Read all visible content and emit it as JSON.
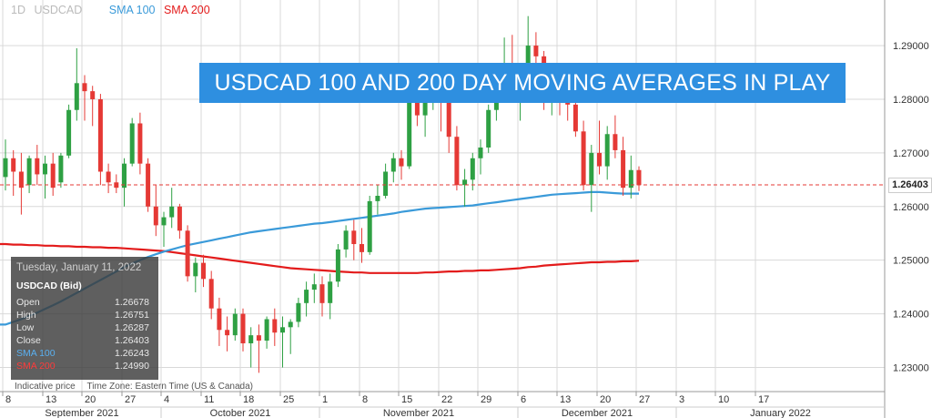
{
  "header": {
    "timeframe": "1D",
    "symbol": "USDCAD",
    "sma100_label": "SMA 100",
    "sma200_label": "SMA 200"
  },
  "banner": {
    "text": "USDCAD 100 AND 200 DAY MOVING AVERAGES IN PLAY"
  },
  "colors": {
    "up": "#2ea043",
    "down": "#e53935",
    "sma100": "#3a9ad9",
    "sma200": "#e31b1b",
    "banner": "#2e8fe0",
    "grid": "#d9d9d9"
  },
  "info_box": {
    "date": "Tuesday, January 11, 2022",
    "pair": "USDCAD (Bid)",
    "rows": [
      {
        "k": "Open",
        "v": "1.26678"
      },
      {
        "k": "High",
        "v": "1.26751"
      },
      {
        "k": "Low",
        "v": "1.26287"
      },
      {
        "k": "Close",
        "v": "1.26403"
      },
      {
        "k": "SMA 100",
        "v": "1.26243"
      },
      {
        "k": "SMA 200",
        "v": "1.24990"
      }
    ]
  },
  "footer": {
    "indicative": "Indicative price",
    "timezone": "Time Zone: Eastern Time (US & Canada)"
  },
  "chart_data": {
    "type": "candlestick",
    "y_ticks": [
      "1.29000",
      "1.28000",
      "1.27000",
      "1.26000",
      "1.25000",
      "1.24000",
      "1.23000"
    ],
    "ylim": [
      1.2255,
      1.2985
    ],
    "last_price_label": "1.26403",
    "last_price": 1.26403,
    "day_ticks": [
      "8",
      "13",
      "20",
      "27",
      "4",
      "11",
      "18",
      "25",
      "1",
      "8",
      "15",
      "22",
      "29",
      "6",
      "13",
      "20",
      "27",
      "3",
      "10",
      "17"
    ],
    "months": [
      "September 2021",
      "October 2021",
      "November 2021",
      "December 2021",
      "January 2022"
    ],
    "candles": [
      [
        1.2655,
        1.2725,
        1.263,
        1.269
      ],
      [
        1.269,
        1.2705,
        1.262,
        1.2665
      ],
      [
        1.2665,
        1.27,
        1.2585,
        1.2635
      ],
      [
        1.264,
        1.2695,
        1.2625,
        1.269
      ],
      [
        1.269,
        1.2715,
        1.264,
        1.266
      ],
      [
        1.266,
        1.2695,
        1.2615,
        1.268
      ],
      [
        1.268,
        1.27,
        1.262,
        1.2635
      ],
      [
        1.2645,
        1.27,
        1.2635,
        1.2695
      ],
      [
        1.2695,
        1.279,
        1.269,
        1.278
      ],
      [
        1.278,
        1.2895,
        1.276,
        1.283
      ],
      [
        1.283,
        1.2845,
        1.276,
        1.2815
      ],
      [
        1.2815,
        1.2825,
        1.275,
        1.28
      ],
      [
        1.28,
        1.281,
        1.264,
        1.2665
      ],
      [
        1.2665,
        1.268,
        1.2625,
        1.2645
      ],
      [
        1.2645,
        1.266,
        1.2625,
        1.2635
      ],
      [
        1.2635,
        1.269,
        1.26,
        1.268
      ],
      [
        1.268,
        1.2765,
        1.2675,
        1.2755
      ],
      [
        1.2755,
        1.2775,
        1.266,
        1.268
      ],
      [
        1.268,
        1.269,
        1.259,
        1.26
      ],
      [
        1.26,
        1.264,
        1.2545,
        1.2565
      ],
      [
        1.2565,
        1.259,
        1.2525,
        1.258
      ],
      [
        1.258,
        1.2635,
        1.256,
        1.26
      ],
      [
        1.26,
        1.2605,
        1.254,
        1.2555
      ],
      [
        1.2555,
        1.2565,
        1.246,
        1.247
      ],
      [
        1.247,
        1.2505,
        1.244,
        1.2495
      ],
      [
        1.2495,
        1.251,
        1.245,
        1.2465
      ],
      [
        1.2465,
        1.248,
        1.239,
        1.241
      ],
      [
        1.241,
        1.243,
        1.234,
        1.237
      ],
      [
        1.237,
        1.2395,
        1.233,
        1.236
      ],
      [
        1.236,
        1.241,
        1.235,
        1.24
      ],
      [
        1.24,
        1.241,
        1.233,
        1.2345
      ],
      [
        1.2345,
        1.2375,
        1.23,
        1.236
      ],
      [
        1.236,
        1.238,
        1.229,
        1.235
      ],
      [
        1.235,
        1.2395,
        1.2335,
        1.239
      ],
      [
        1.239,
        1.241,
        1.234,
        1.2365
      ],
      [
        1.2365,
        1.2395,
        1.23,
        1.2375
      ],
      [
        1.2375,
        1.239,
        1.2325,
        1.2385
      ],
      [
        1.2385,
        1.243,
        1.2375,
        1.242
      ],
      [
        1.242,
        1.246,
        1.2395,
        1.2445
      ],
      [
        1.2445,
        1.2475,
        1.242,
        1.2455
      ],
      [
        1.2455,
        1.247,
        1.2395,
        1.242
      ],
      [
        1.242,
        1.2475,
        1.239,
        1.246
      ],
      [
        1.246,
        1.253,
        1.245,
        1.252
      ],
      [
        1.252,
        1.2565,
        1.2505,
        1.2555
      ],
      [
        1.2555,
        1.2575,
        1.25,
        1.253
      ],
      [
        1.253,
        1.256,
        1.2495,
        1.2515
      ],
      [
        1.2515,
        1.262,
        1.251,
        1.261
      ],
      [
        1.261,
        1.264,
        1.2585,
        1.262
      ],
      [
        1.262,
        1.268,
        1.2615,
        1.2665
      ],
      [
        1.2665,
        1.27,
        1.2645,
        1.269
      ],
      [
        1.269,
        1.2705,
        1.265,
        1.2675
      ],
      [
        1.2675,
        1.281,
        1.267,
        1.2795
      ],
      [
        1.2795,
        1.283,
        1.275,
        1.277
      ],
      [
        1.277,
        1.282,
        1.273,
        1.28
      ],
      [
        1.28,
        1.286,
        1.278,
        1.282
      ],
      [
        1.282,
        1.283,
        1.274,
        1.28
      ],
      [
        1.28,
        1.283,
        1.27,
        1.273
      ],
      [
        1.273,
        1.275,
        1.263,
        1.264
      ],
      [
        1.264,
        1.267,
        1.26,
        1.265
      ],
      [
        1.265,
        1.27,
        1.263,
        1.269
      ],
      [
        1.269,
        1.2725,
        1.266,
        1.271
      ],
      [
        1.271,
        1.279,
        1.27,
        1.278
      ],
      [
        1.278,
        1.282,
        1.276,
        1.281
      ],
      [
        1.281,
        1.2915,
        1.28,
        1.286
      ],
      [
        1.286,
        1.292,
        1.2795,
        1.2815
      ],
      [
        1.2815,
        1.285,
        1.276,
        1.283
      ],
      [
        1.283,
        1.2955,
        1.282,
        1.29
      ],
      [
        1.29,
        1.2925,
        1.286,
        1.288
      ],
      [
        1.288,
        1.289,
        1.278,
        1.28
      ],
      [
        1.28,
        1.284,
        1.277,
        1.2815
      ],
      [
        1.2815,
        1.283,
        1.277,
        1.28
      ],
      [
        1.28,
        1.282,
        1.276,
        1.279
      ],
      [
        1.279,
        1.281,
        1.273,
        1.274
      ],
      [
        1.274,
        1.276,
        1.263,
        1.264
      ],
      [
        1.264,
        1.2715,
        1.259,
        1.27
      ],
      [
        1.27,
        1.276,
        1.266,
        1.2675
      ],
      [
        1.2675,
        1.275,
        1.265,
        1.2735
      ],
      [
        1.2735,
        1.277,
        1.269,
        1.2705
      ],
      [
        1.2705,
        1.273,
        1.262,
        1.2635
      ],
      [
        1.2635,
        1.2695,
        1.2615,
        1.2668
      ],
      [
        1.2668,
        1.2675,
        1.2629,
        1.264
      ]
    ],
    "sma100": [
      1.238,
      1.2385,
      1.239,
      1.2396,
      1.2402,
      1.2409,
      1.2416,
      1.2423,
      1.2431,
      1.2439,
      1.2447,
      1.2455,
      1.2463,
      1.2471,
      1.2479,
      1.2487,
      1.2494,
      1.25,
      1.2506,
      1.2511,
      1.2516,
      1.252,
      1.2524,
      1.2528,
      1.2531,
      1.2534,
      1.2537,
      1.254,
      1.2543,
      1.2546,
      1.2549,
      1.2552,
      1.2554,
      1.2556,
      1.2558,
      1.256,
      1.2562,
      1.2564,
      1.2566,
      1.2568,
      1.2569,
      1.2571,
      1.2573,
      1.2575,
      1.2577,
      1.2579,
      1.2581,
      1.2583,
      1.2585,
      1.2587,
      1.259,
      1.2592,
      1.2594,
      1.2596,
      1.2597,
      1.2598,
      1.2599,
      1.26,
      1.2601,
      1.2602,
      1.2604,
      1.2606,
      1.2608,
      1.261,
      1.2612,
      1.2614,
      1.2616,
      1.2618,
      1.262,
      1.2622,
      1.2623,
      1.2624,
      1.2625,
      1.2626,
      1.2627,
      1.2627,
      1.2626,
      1.2625,
      1.2624,
      1.2624,
      1.2624
    ],
    "sma200": [
      1.253,
      1.2529,
      1.2529,
      1.2528,
      1.2528,
      1.2527,
      1.2527,
      1.2526,
      1.2526,
      1.2525,
      1.2525,
      1.2524,
      1.2524,
      1.2523,
      1.2523,
      1.2522,
      1.2521,
      1.252,
      1.2519,
      1.2518,
      1.2517,
      1.2515,
      1.2513,
      1.2511,
      1.2509,
      1.2507,
      1.2505,
      1.2503,
      1.2501,
      1.2499,
      1.2497,
      1.2495,
      1.2493,
      1.2491,
      1.2489,
      1.2487,
      1.2485,
      1.2484,
      1.2483,
      1.2482,
      1.2481,
      1.248,
      1.2479,
      1.2478,
      1.2477,
      1.2477,
      1.2476,
      1.2476,
      1.2476,
      1.2476,
      1.2476,
      1.2476,
      1.2476,
      1.2477,
      1.2477,
      1.2478,
      1.2479,
      1.2479,
      1.248,
      1.248,
      1.2481,
      1.2481,
      1.2482,
      1.2483,
      1.2484,
      1.2485,
      1.2487,
      1.2488,
      1.249,
      1.2491,
      1.2492,
      1.2493,
      1.2494,
      1.2495,
      1.2496,
      1.2496,
      1.2497,
      1.2497,
      1.2498,
      1.2498,
      1.2499
    ]
  }
}
